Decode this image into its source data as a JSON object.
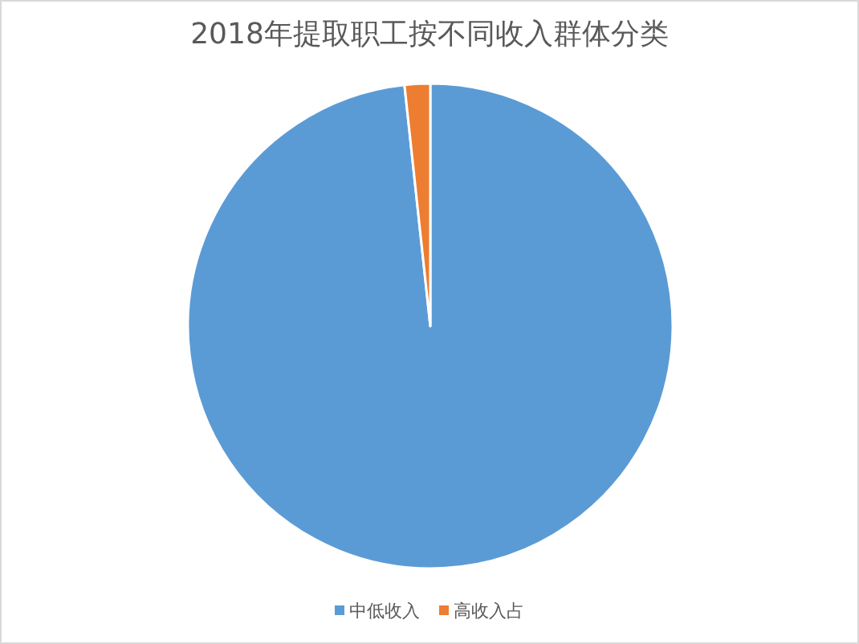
{
  "chart_data": {
    "type": "pie",
    "title": "2018年提取职工按不同收入群体分类",
    "categories": [
      "中低收入",
      "高收入占"
    ],
    "values": [
      98.3,
      1.7
    ],
    "colors": [
      "#5b9bd5",
      "#ed7d31"
    ],
    "legend": "bottom"
  }
}
